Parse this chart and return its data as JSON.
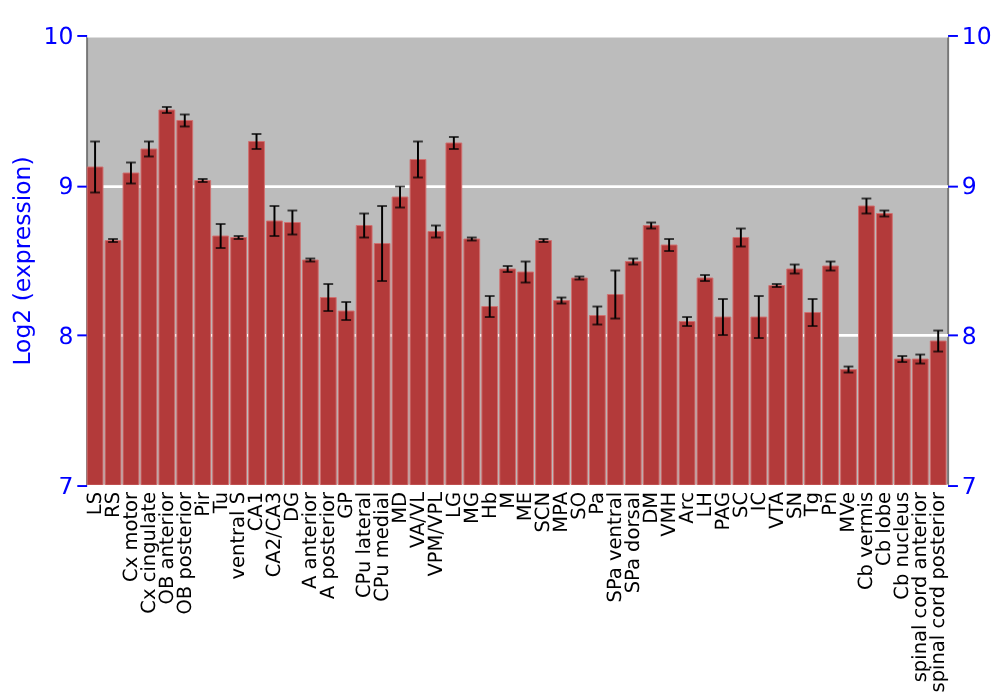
{
  "chart_data": {
    "type": "bar",
    "ylabel": "Log2 (expression)",
    "categories": [
      "LS",
      "RS",
      "Cx motor",
      "Cx cingulate",
      "OB anterior",
      "OB posterior",
      "Pir",
      "Tu",
      "ventral S",
      "CA1",
      "CA2/CA3",
      "DG",
      "A anterior",
      "A posterior",
      "GP",
      "CPu lateral",
      "CPu medial",
      "MD",
      "VA/VL",
      "VPM/VPL",
      "LG",
      "MG",
      "Hb",
      "M",
      "ME",
      "SCN",
      "MPA",
      "SO",
      "Pa",
      "SPa ventral",
      "SPa dorsal",
      "DM",
      "VMH",
      "Arc",
      "LH",
      "PAG",
      "SC",
      "IC",
      "VTA",
      "SN",
      "Tg",
      "Pn",
      "MVe",
      "Cb vermis",
      "Cb lobe",
      "Cb nucleus",
      "spinal cord anterior",
      "spinal cord posterior"
    ],
    "series": [
      {
        "color": "#b33a3a",
        "values": [
          9.12,
          8.63,
          9.08,
          9.24,
          9.5,
          9.43,
          9.03,
          8.66,
          8.65,
          9.29,
          8.76,
          8.75,
          8.5,
          8.25,
          8.16,
          8.73,
          8.61,
          8.92,
          9.17,
          8.69,
          9.28,
          8.64,
          8.19,
          8.44,
          8.42,
          8.63,
          8.23,
          8.38,
          8.13,
          8.27,
          8.49,
          8.73,
          8.6,
          8.09,
          8.38,
          8.12,
          8.65,
          8.12,
          8.33,
          8.44,
          8.15,
          8.46,
          7.77,
          8.86,
          8.81,
          7.84,
          7.84,
          7.96
        ],
        "errors": [
          0.17,
          0.01,
          0.07,
          0.05,
          0.02,
          0.04,
          0.01,
          0.08,
          0.01,
          0.05,
          0.1,
          0.08,
          0.01,
          0.09,
          0.06,
          0.08,
          0.25,
          0.07,
          0.12,
          0.04,
          0.04,
          0.01,
          0.07,
          0.02,
          0.07,
          0.01,
          0.02,
          0.01,
          0.06,
          0.16,
          0.02,
          0.02,
          0.04,
          0.03,
          0.02,
          0.12,
          0.06,
          0.14,
          0.01,
          0.03,
          0.09,
          0.03,
          0.02,
          0.05,
          0.02,
          0.02,
          0.03,
          0.07
        ]
      }
    ],
    "ylim": [
      7,
      10
    ],
    "yticks": [
      7,
      8,
      9,
      10
    ],
    "y2lim": [
      7,
      10
    ],
    "y2ticks": [
      7,
      8,
      9,
      10
    ],
    "grid": "y"
  }
}
